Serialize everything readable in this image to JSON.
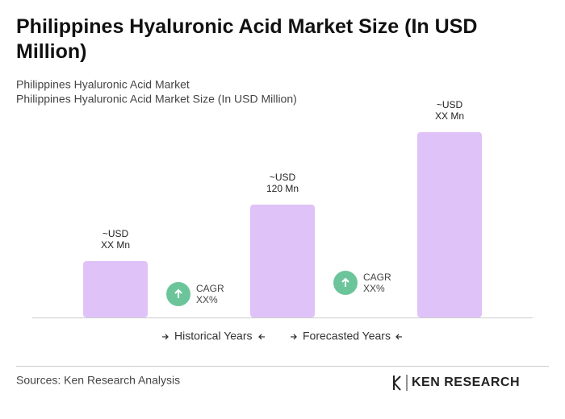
{
  "chart_data": {
    "type": "bar",
    "title": "Philippines Hyaluronic Acid Market Size (In USD Million)",
    "subtitle": [
      "Philippines Hyaluronic Acid Market",
      "Philippines Hyaluronic Acid Market Size (In USD Million)"
    ],
    "categories": [
      null,
      null,
      null
    ],
    "values": [
      60,
      120,
      197
    ],
    "value_labels": [
      [
        "~USD",
        "XX Mn"
      ],
      [
        "~USD",
        "120 Mn"
      ],
      [
        "~USD",
        "XX Mn"
      ]
    ],
    "color": "#dfc3f8",
    "annotations": [
      [
        "CAGR",
        "XX%"
      ],
      [
        "CAGR",
        "XX%"
      ]
    ],
    "annotation_color": "#6cc59a",
    "periods": [
      "Historical Years",
      "Forecasted Years"
    ],
    "source": "Sources: Ken Research Analysis",
    "logo": "KEN RESEARCH"
  }
}
